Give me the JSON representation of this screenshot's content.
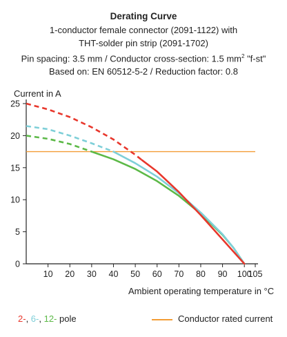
{
  "header": {
    "title": "Derating Curve",
    "line1": "1-conductor female connector (2091-1122) with",
    "line2": "THT-solder pin strip (2091-1702)",
    "line3a": "Pin spacing: 3.5 mm / Conductor cross-section: 1.5 mm",
    "line3sup": "2",
    "line3b": " \"f-st\"",
    "line4": "Based on: EN 60512-5-2 / Reduction factor: 0.8"
  },
  "legend": {
    "p2": "2-",
    "p6": "6-",
    "p12": "12-",
    "pole_text": "pole",
    "rated": "Conductor rated current",
    "sep": ", "
  },
  "colors": {
    "pole2": "#e8372c",
    "pole6": "#7ecfd8",
    "pole12": "#5cb947",
    "rated": "#f39c34",
    "axis": "#222222"
  },
  "chart_data": {
    "type": "line",
    "ylabel": "Current in A",
    "xlabel": "Ambient operating temperature in °C",
    "xlim": [
      0,
      105
    ],
    "ylim": [
      0,
      25
    ],
    "xticks": [
      10,
      20,
      30,
      40,
      50,
      60,
      70,
      80,
      90,
      100,
      105
    ],
    "yticks": [
      0,
      5,
      10,
      15,
      20,
      25
    ],
    "series": [
      {
        "name": "2-pole",
        "color": "#e8372c",
        "dashed_until_x": 53,
        "x": [
          0,
          10,
          20,
          30,
          40,
          50,
          53,
          60,
          70,
          80,
          90,
          95,
          100
        ],
        "y": [
          25.0,
          24.1,
          22.9,
          21.3,
          19.4,
          17.0,
          16.2,
          14.4,
          11.2,
          7.6,
          3.8,
          1.9,
          0
        ]
      },
      {
        "name": "6-pole",
        "color": "#7ecfd8",
        "dashed_until_x": 40,
        "x": [
          0,
          10,
          20,
          30,
          40,
          50,
          60,
          70,
          80,
          90,
          95,
          100
        ],
        "y": [
          21.5,
          21.0,
          20.0,
          18.8,
          17.5,
          15.7,
          13.6,
          11.0,
          8.0,
          4.6,
          2.5,
          0
        ]
      },
      {
        "name": "12-pole",
        "color": "#5cb947",
        "dashed_until_x": 30,
        "x": [
          0,
          10,
          20,
          30,
          40,
          50,
          60,
          70,
          80,
          90,
          95,
          100
        ],
        "y": [
          20.0,
          19.5,
          18.7,
          17.5,
          16.3,
          14.8,
          12.9,
          10.6,
          7.8,
          4.5,
          2.5,
          0
        ]
      },
      {
        "name": "Conductor rated current",
        "color": "#f39c34",
        "x": [
          0,
          105
        ],
        "y": [
          17.5,
          17.5
        ]
      }
    ]
  }
}
